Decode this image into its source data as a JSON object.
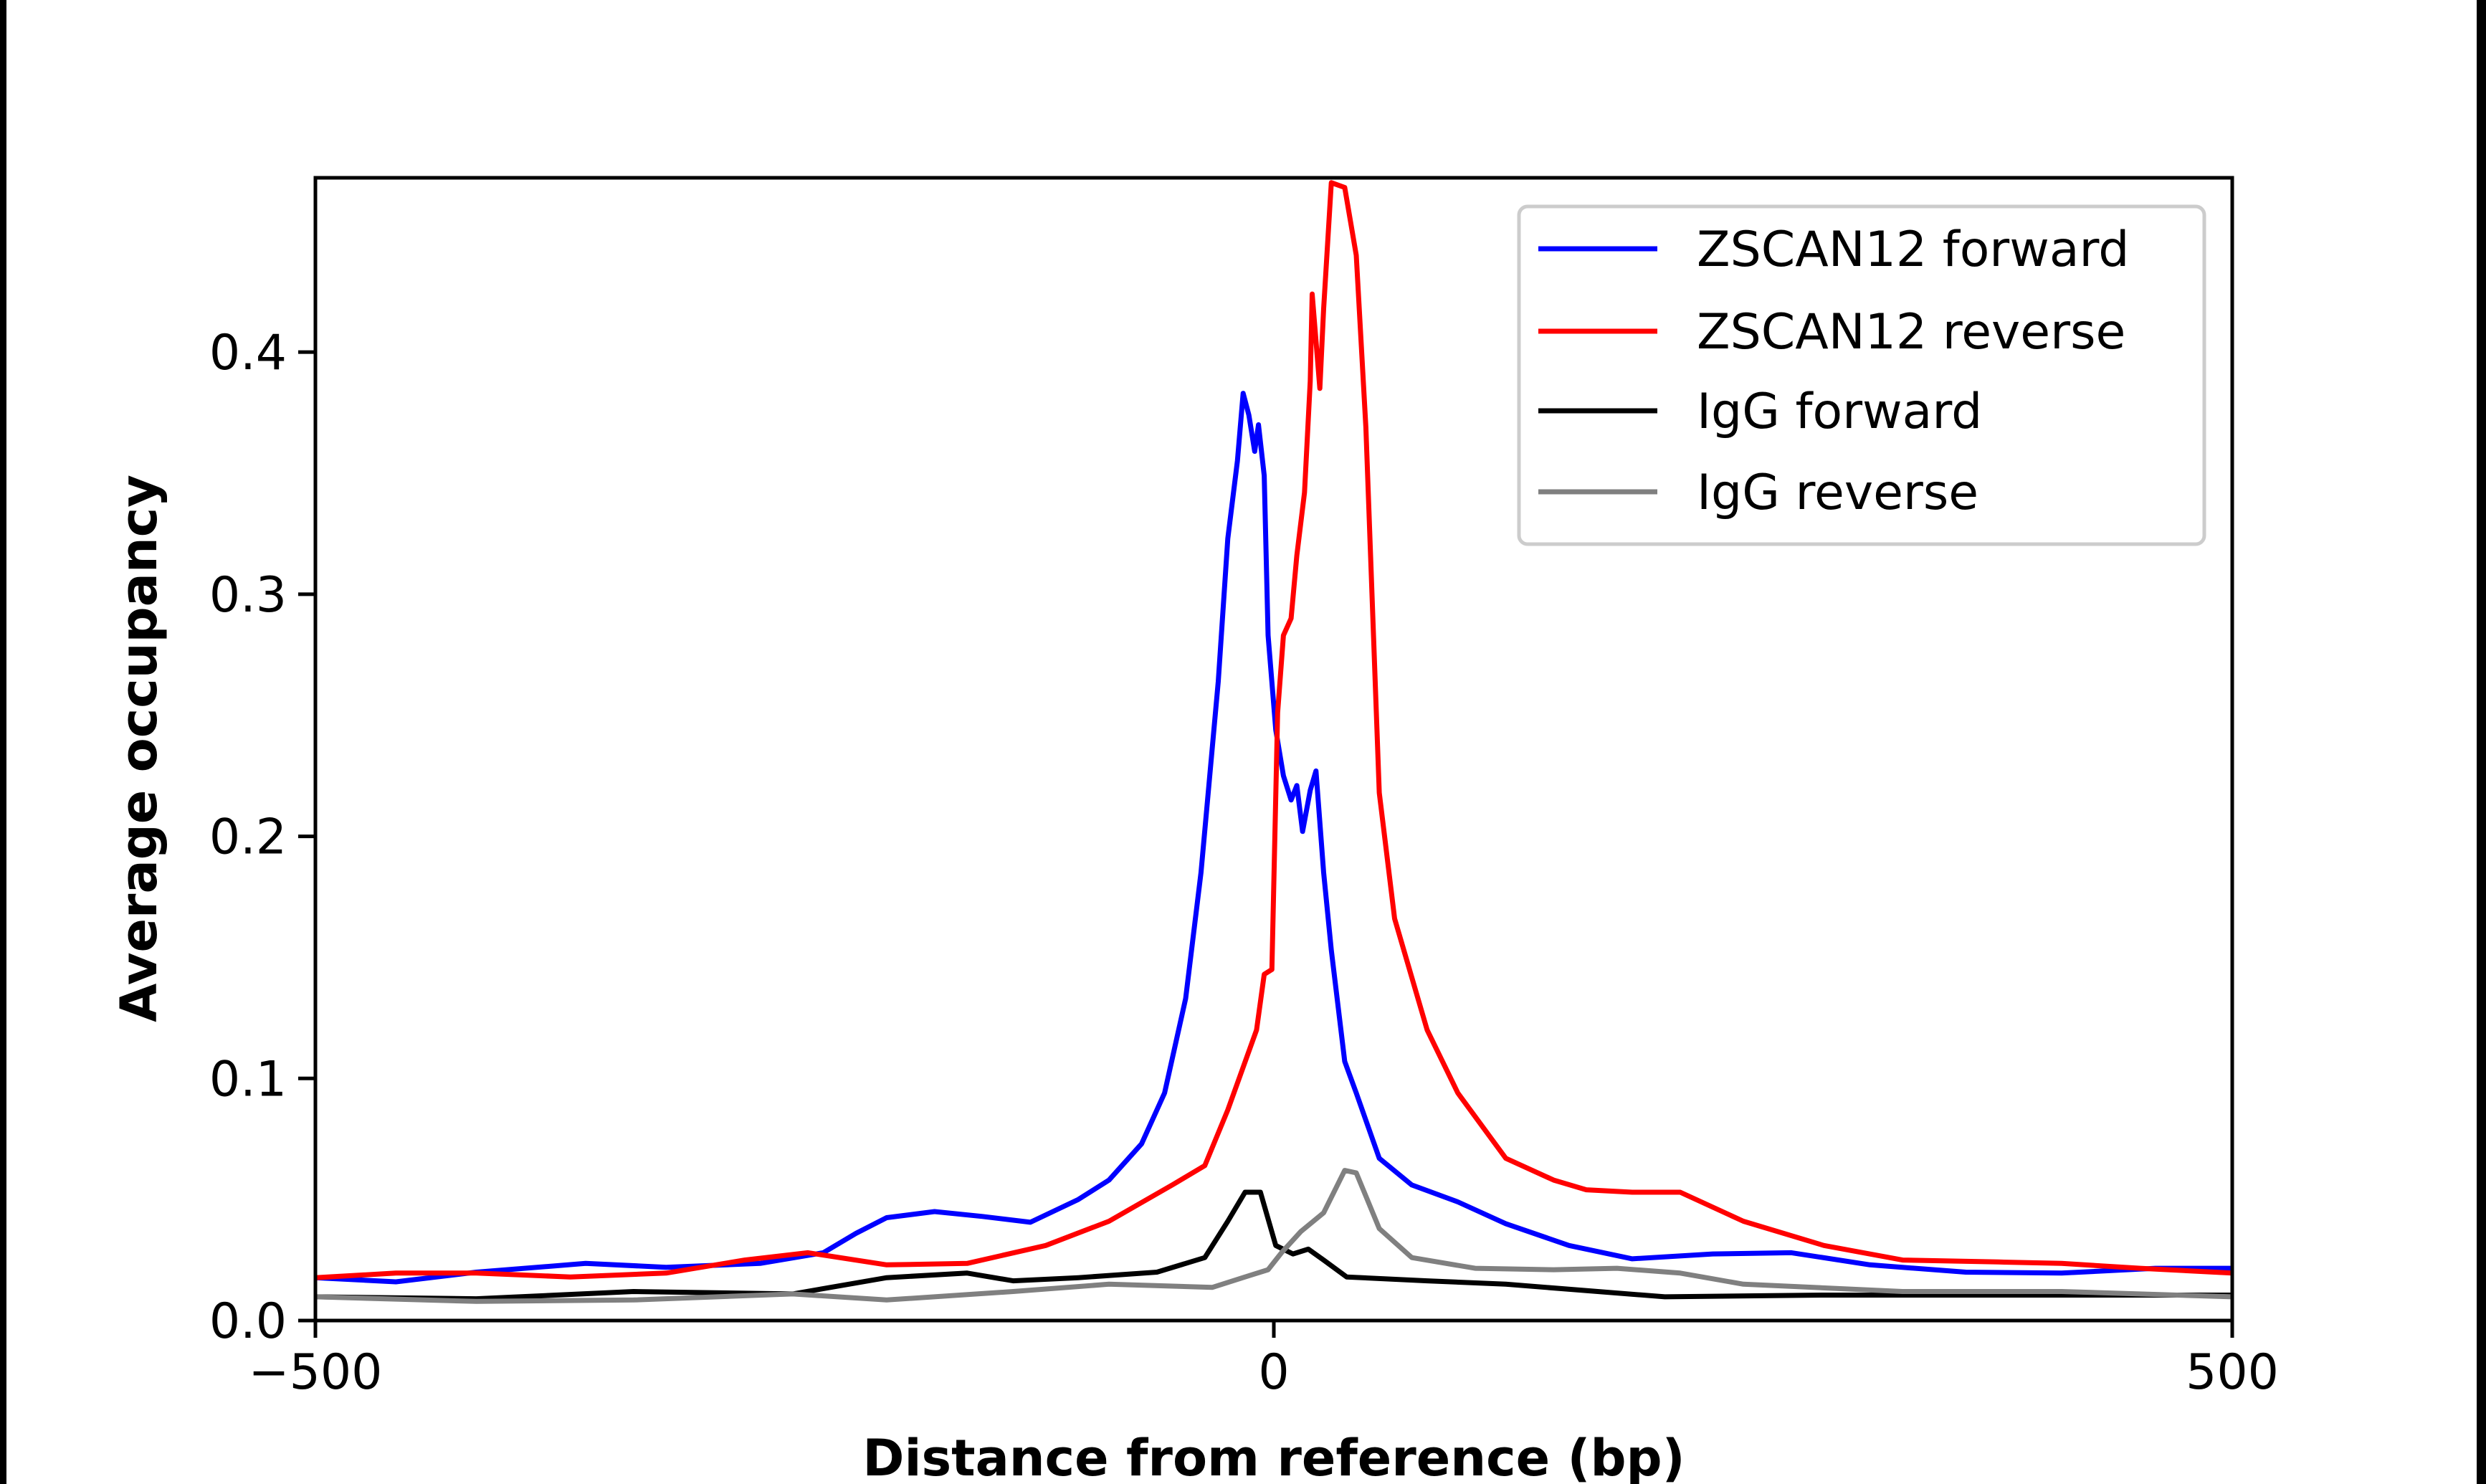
{
  "chart_data": {
    "type": "line",
    "title": "",
    "xlabel": "Distance from reference (bp)",
    "ylabel": "Average occupancy",
    "xlim": [
      -500,
      500
    ],
    "ylim": [
      0,
      0.472
    ],
    "xticks": [
      -500,
      0,
      500
    ],
    "xtick_labels": [
      "−500",
      "0",
      "500"
    ],
    "yticks": [
      0.0,
      0.1,
      0.2,
      0.3,
      0.4
    ],
    "ytick_labels": [
      "0.0",
      "0.1",
      "0.2",
      "0.3",
      "0.4"
    ],
    "grid": false,
    "legend_position": "top-right",
    "series": [
      {
        "name": "ZSCAN12 forward",
        "color": "#0000ff",
        "x": [
          -500,
          -458,
          -416,
          -359,
          -317,
          -268,
          -235,
          -218,
          -202,
          -177,
          -152,
          -127,
          -102,
          -86,
          -69,
          -57,
          -46,
          -38,
          -29,
          -24,
          -19,
          -16,
          -13,
          -10,
          -8,
          -5,
          -3,
          1,
          5,
          9,
          12,
          15,
          19,
          22,
          26,
          30,
          37,
          43,
          55,
          72,
          96,
          121,
          154,
          187,
          229,
          270,
          311,
          361,
          411,
          460,
          500
        ],
        "y": [
          0.0177,
          0.016,
          0.02,
          0.0236,
          0.022,
          0.0236,
          0.028,
          0.036,
          0.0425,
          0.045,
          0.043,
          0.0406,
          0.05,
          0.058,
          0.073,
          0.094,
          0.133,
          0.185,
          0.264,
          0.323,
          0.355,
          0.383,
          0.374,
          0.359,
          0.37,
          0.349,
          0.283,
          0.244,
          0.225,
          0.215,
          0.221,
          0.202,
          0.219,
          0.227,
          0.185,
          0.153,
          0.107,
          0.094,
          0.067,
          0.056,
          0.049,
          0.04,
          0.031,
          0.0255,
          0.0275,
          0.028,
          0.023,
          0.02,
          0.0196,
          0.0216,
          0.0216
        ]
      },
      {
        "name": "ZSCAN12 reverse",
        "color": "#ff0000",
        "x": [
          -500,
          -458,
          -416,
          -367,
          -317,
          -276,
          -243,
          -202,
          -160,
          -119,
          -86,
          -53,
          -36,
          -24,
          -9,
          -5,
          -1,
          2,
          5,
          9,
          12,
          16,
          19,
          20,
          24,
          26,
          30,
          37,
          43,
          48,
          55,
          63,
          80,
          96,
          121,
          146,
          163,
          187,
          212,
          245,
          287,
          328,
          378,
          411,
          452,
          500
        ],
        "y": [
          0.0177,
          0.0196,
          0.0196,
          0.018,
          0.0196,
          0.025,
          0.028,
          0.023,
          0.0236,
          0.031,
          0.041,
          0.056,
          0.064,
          0.087,
          0.12,
          0.143,
          0.145,
          0.251,
          0.283,
          0.29,
          0.316,
          0.342,
          0.388,
          0.424,
          0.385,
          0.418,
          0.47,
          0.468,
          0.44,
          0.369,
          0.218,
          0.166,
          0.12,
          0.094,
          0.067,
          0.058,
          0.054,
          0.053,
          0.053,
          0.041,
          0.031,
          0.025,
          0.0242,
          0.0236,
          0.0216,
          0.0196
        ]
      },
      {
        "name": "IgG forward",
        "color": "#000000",
        "x": [
          -500,
          -416,
          -334,
          -251,
          -202,
          -160,
          -136,
          -102,
          -61,
          -36,
          -24,
          -15,
          -7,
          1,
          10,
          18,
          26,
          38,
          80,
          121,
          204,
          287,
          369,
          500
        ],
        "y": [
          0.0098,
          0.009,
          0.012,
          0.011,
          0.0177,
          0.0196,
          0.0164,
          0.0177,
          0.02,
          0.026,
          0.041,
          0.053,
          0.053,
          0.031,
          0.0275,
          0.0295,
          0.025,
          0.018,
          0.0164,
          0.015,
          0.0098,
          0.0105,
          0.0105,
          0.0105
        ]
      },
      {
        "name": "IgG reverse",
        "color": "#808080",
        "x": [
          -500,
          -416,
          -334,
          -251,
          -202,
          -136,
          -86,
          -32,
          -15,
          -3,
          4,
          14,
          26,
          37,
          43,
          55,
          72,
          105,
          146,
          179,
          212,
          245,
          328,
          411,
          500
        ],
        "y": [
          0.0098,
          0.0079,
          0.0085,
          0.011,
          0.0085,
          0.012,
          0.015,
          0.0137,
          0.018,
          0.021,
          0.028,
          0.0367,
          0.0445,
          0.062,
          0.061,
          0.038,
          0.026,
          0.0216,
          0.021,
          0.0216,
          0.0196,
          0.015,
          0.012,
          0.012,
          0.0098
        ]
      }
    ]
  }
}
